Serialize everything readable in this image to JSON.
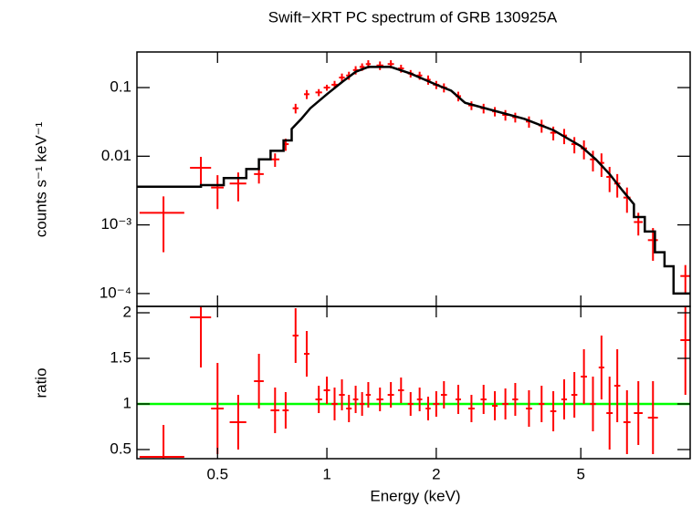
{
  "chart_data": [
    {
      "type": "errorbar",
      "title": "Swift−XRT PC spectrum of GRB 130925A",
      "ylabel": "counts s⁻¹ keV⁻¹",
      "xscale": "log",
      "yscale": "log",
      "xlim": [
        0.3,
        10
      ],
      "ylim": [
        6.5e-05,
        0.33
      ],
      "yticks": [
        0.1,
        0.01,
        {
          "value": 0.001,
          "label": "10⁻³"
        },
        {
          "value": 0.0001,
          "label": "10⁻⁴"
        }
      ],
      "series": [
        {
          "name": "data",
          "color": "#ff0000",
          "x": [
            0.355,
            0.45,
            0.5,
            0.57,
            0.65,
            0.72,
            0.77,
            0.82,
            0.88,
            0.95,
            1.0,
            1.05,
            1.1,
            1.15,
            1.2,
            1.25,
            1.3,
            1.4,
            1.5,
            1.6,
            1.7,
            1.8,
            1.9,
            2.0,
            2.1,
            2.3,
            2.5,
            2.7,
            2.9,
            3.1,
            3.3,
            3.6,
            3.9,
            4.2,
            4.5,
            4.8,
            5.1,
            5.4,
            5.7,
            6.0,
            6.3,
            6.7,
            7.2,
            7.9,
            9.7
          ],
          "xerr": [
            0.05,
            0.03,
            0.02,
            0.03,
            0.02,
            0.02,
            0.015,
            0.015,
            0.015,
            0.02,
            0.02,
            0.02,
            0.02,
            0.02,
            0.02,
            0.02,
            0.02,
            0.03,
            0.03,
            0.03,
            0.03,
            0.03,
            0.03,
            0.04,
            0.04,
            0.04,
            0.05,
            0.05,
            0.05,
            0.06,
            0.06,
            0.07,
            0.07,
            0.08,
            0.08,
            0.09,
            0.1,
            0.1,
            0.1,
            0.12,
            0.12,
            0.15,
            0.2,
            0.25,
            0.3
          ],
          "values": [
            0.0015,
            0.0068,
            0.0035,
            0.004,
            0.0055,
            0.009,
            0.015,
            0.05,
            0.08,
            0.085,
            0.1,
            0.11,
            0.14,
            0.15,
            0.18,
            0.2,
            0.22,
            0.21,
            0.22,
            0.19,
            0.16,
            0.15,
            0.13,
            0.11,
            0.1,
            0.075,
            0.055,
            0.05,
            0.045,
            0.04,
            0.037,
            0.032,
            0.028,
            0.022,
            0.02,
            0.015,
            0.013,
            0.009,
            0.008,
            0.005,
            0.004,
            0.0025,
            0.0011,
            0.0006,
            0.00018
          ],
          "yerr": [
            0.0011,
            0.003,
            0.0018,
            0.0018,
            0.0015,
            0.002,
            0.003,
            0.008,
            0.012,
            0.01,
            0.01,
            0.015,
            0.02,
            0.02,
            0.025,
            0.025,
            0.03,
            0.03,
            0.03,
            0.025,
            0.02,
            0.02,
            0.02,
            0.015,
            0.015,
            0.012,
            0.008,
            0.008,
            0.007,
            0.007,
            0.006,
            0.006,
            0.006,
            0.005,
            0.005,
            0.004,
            0.004,
            0.003,
            0.003,
            0.002,
            0.0015,
            0.001,
            0.0004,
            0.0003,
            8e-05
          ]
        },
        {
          "name": "model",
          "color": "#000000",
          "line": true,
          "x": [
            0.3,
            0.45,
            0.45,
            0.52,
            0.52,
            0.6,
            0.6,
            0.65,
            0.65,
            0.7,
            0.7,
            0.76,
            0.76,
            0.8,
            0.8,
            0.85,
            0.9,
            1.0,
            1.1,
            1.2,
            1.3,
            1.5,
            1.7,
            2.0,
            2.2,
            2.4,
            2.8,
            3.5,
            4.2,
            5.0,
            5.5,
            6.0,
            6.5,
            7.0,
            7.0,
            7.5,
            7.5,
            8.0,
            8.0,
            8.5,
            8.5,
            9.0,
            9.0,
            10
          ],
          "values": [
            0.0036,
            0.0036,
            0.0038,
            0.0038,
            0.0048,
            0.0048,
            0.0065,
            0.0065,
            0.009,
            0.009,
            0.012,
            0.012,
            0.017,
            0.017,
            0.025,
            0.035,
            0.05,
            0.08,
            0.12,
            0.17,
            0.2,
            0.2,
            0.16,
            0.11,
            0.09,
            0.06,
            0.048,
            0.035,
            0.024,
            0.014,
            0.009,
            0.0055,
            0.0032,
            0.002,
            0.0013,
            0.0013,
            0.0008,
            0.0008,
            0.0004,
            0.0004,
            0.00025,
            0.00025,
            0.0001,
            0.0001
          ]
        }
      ]
    },
    {
      "type": "errorbar",
      "xlabel": "Energy (keV)",
      "ylabel": "ratio",
      "xscale": "log",
      "xlim": [
        0.3,
        10
      ],
      "ylim": [
        0.4,
        2.07
      ],
      "xticks": [
        0.5,
        1,
        2,
        5
      ],
      "yticks": [
        0.5,
        1,
        1.5,
        2
      ],
      "reference_line": 1,
      "reference_color": "#00ff00",
      "series": [
        {
          "name": "ratio",
          "color": "#ff0000",
          "x": [
            0.355,
            0.45,
            0.5,
            0.57,
            0.65,
            0.72,
            0.77,
            0.82,
            0.88,
            0.95,
            1.0,
            1.05,
            1.1,
            1.15,
            1.2,
            1.25,
            1.3,
            1.4,
            1.5,
            1.6,
            1.7,
            1.8,
            1.9,
            2.0,
            2.1,
            2.3,
            2.5,
            2.7,
            2.9,
            3.1,
            3.3,
            3.6,
            3.9,
            4.2,
            4.5,
            4.8,
            5.1,
            5.4,
            5.7,
            6.0,
            6.3,
            6.7,
            7.2,
            7.9,
            9.7
          ],
          "xerr": [
            0.05,
            0.03,
            0.02,
            0.03,
            0.02,
            0.02,
            0.015,
            0.015,
            0.015,
            0.02,
            0.02,
            0.02,
            0.02,
            0.02,
            0.02,
            0.02,
            0.02,
            0.03,
            0.03,
            0.03,
            0.03,
            0.03,
            0.03,
            0.04,
            0.04,
            0.04,
            0.05,
            0.05,
            0.05,
            0.06,
            0.06,
            0.07,
            0.07,
            0.08,
            0.08,
            0.09,
            0.1,
            0.1,
            0.1,
            0.12,
            0.12,
            0.15,
            0.2,
            0.25,
            0.3
          ],
          "values": [
            0.42,
            1.95,
            0.95,
            0.8,
            1.25,
            0.93,
            0.93,
            1.75,
            1.55,
            1.05,
            1.15,
            1.0,
            1.1,
            0.95,
            1.05,
            1.0,
            1.1,
            1.05,
            1.1,
            1.15,
            1.0,
            1.05,
            0.95,
            1.0,
            1.1,
            1.05,
            0.95,
            1.05,
            0.98,
            1.0,
            1.05,
            0.95,
            1.0,
            0.92,
            1.05,
            1.1,
            1.3,
            1.0,
            1.4,
            0.9,
            1.2,
            0.8,
            0.9,
            0.85,
            1.7
          ],
          "yerr": [
            0.35,
            0.55,
            0.5,
            0.3,
            0.3,
            0.25,
            0.2,
            0.3,
            0.25,
            0.15,
            0.15,
            0.18,
            0.17,
            0.15,
            0.15,
            0.13,
            0.14,
            0.13,
            0.14,
            0.14,
            0.13,
            0.13,
            0.13,
            0.14,
            0.15,
            0.16,
            0.15,
            0.16,
            0.16,
            0.17,
            0.18,
            0.2,
            0.2,
            0.22,
            0.22,
            0.25,
            0.3,
            0.3,
            0.35,
            0.4,
            0.4,
            0.35,
            0.35,
            0.4,
            0.6
          ]
        }
      ]
    }
  ]
}
